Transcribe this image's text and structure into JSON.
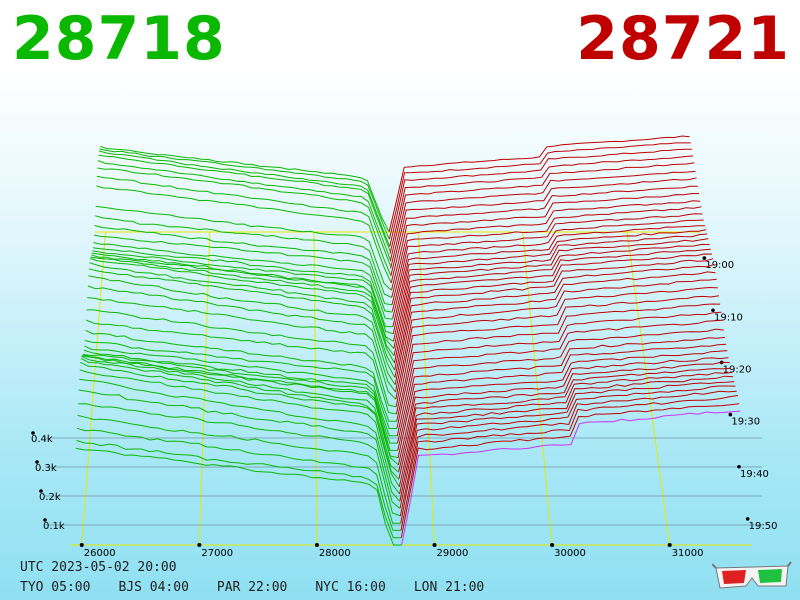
{
  "bid_price": "28718",
  "ask_price": "28721",
  "colors": {
    "bid": "#0ab800",
    "ask": "#c00000",
    "grid": "#e8e800",
    "last_line": "#cc33ff"
  },
  "utc_label": "UTC 2023-05-02 20:00",
  "timezones": [
    {
      "label": "TYO 05:00"
    },
    {
      "label": "BJS 04:00"
    },
    {
      "label": "PAR 22:00"
    },
    {
      "label": "NYC 16:00"
    },
    {
      "label": "LON 21:00"
    }
  ],
  "icon": "3d-glasses-icon",
  "chart_data": {
    "type": "area",
    "description": "3D order-book depth chart: bid depth (green) left of mid, ask depth (red) right of mid, stacked over time",
    "x_ticks": [
      "26000",
      "27000",
      "28000",
      "29000",
      "30000",
      "31000"
    ],
    "x_range": [
      25900,
      31700
    ],
    "y_ticks": [
      "0.1k",
      "0.2k",
      "0.3k",
      "0.4k"
    ],
    "y_range": [
      0,
      400
    ],
    "time_ticks": [
      "19:00",
      "19:10",
      "19:20",
      "19:30",
      "19:40",
      "19:50"
    ],
    "series": [
      {
        "name": "bid",
        "side": "bid"
      },
      {
        "name": "ask",
        "side": "ask"
      }
    ]
  }
}
